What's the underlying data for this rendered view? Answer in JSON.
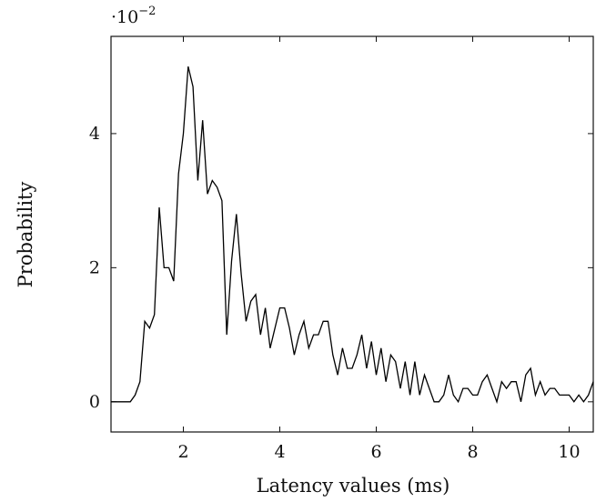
{
  "chart_data": {
    "type": "line",
    "xlabel": "Latency values (ms)",
    "ylabel": "Probability",
    "y_multiplier_base": "·10",
    "y_multiplier_exponent": "−2",
    "xlim": [
      0.5,
      10.5
    ],
    "ylim": [
      -0.0045,
      0.0545
    ],
    "grid": false,
    "x_ticks": [
      2,
      4,
      6,
      8,
      10
    ],
    "x_tick_labels": [
      "2",
      "4",
      "6",
      "8",
      "10"
    ],
    "y_ticks": [
      0,
      0.02,
      0.04
    ],
    "y_tick_labels": [
      "0",
      "2",
      "4"
    ],
    "series": [
      {
        "color": "#000000",
        "x": [
          0.5,
          0.9,
          1.0,
          1.1,
          1.2,
          1.3,
          1.4,
          1.5,
          1.6,
          1.7,
          1.8,
          1.9,
          2.0,
          2.1,
          2.2,
          2.3,
          2.4,
          2.5,
          2.6,
          2.7,
          2.8,
          2.9,
          3.0,
          3.1,
          3.2,
          3.3,
          3.4,
          3.5,
          3.6,
          3.7,
          3.8,
          3.9,
          4.0,
          4.1,
          4.2,
          4.3,
          4.4,
          4.5,
          4.6,
          4.7,
          4.8,
          4.9,
          5.0,
          5.1,
          5.2,
          5.3,
          5.4,
          5.5,
          5.6,
          5.7,
          5.8,
          5.9,
          6.0,
          6.1,
          6.2,
          6.3,
          6.4,
          6.5,
          6.6,
          6.7,
          6.8,
          6.9,
          7.0,
          7.1,
          7.2,
          7.3,
          7.4,
          7.5,
          7.6,
          7.7,
          7.8,
          7.9,
          8.0,
          8.1,
          8.2,
          8.3,
          8.4,
          8.5,
          8.6,
          8.7,
          8.8,
          8.9,
          9.0,
          9.1,
          9.2,
          9.3,
          9.4,
          9.5,
          9.6,
          9.7,
          9.8,
          9.9,
          10.0,
          10.1,
          10.2,
          10.3,
          10.4,
          10.5
        ],
        "values": [
          0.0,
          0.0,
          0.001,
          0.003,
          0.012,
          0.011,
          0.013,
          0.029,
          0.02,
          0.02,
          0.018,
          0.034,
          0.04,
          0.05,
          0.047,
          0.033,
          0.042,
          0.031,
          0.033,
          0.032,
          0.03,
          0.01,
          0.021,
          0.028,
          0.019,
          0.012,
          0.015,
          0.016,
          0.01,
          0.014,
          0.008,
          0.011,
          0.014,
          0.014,
          0.011,
          0.007,
          0.01,
          0.012,
          0.008,
          0.01,
          0.01,
          0.012,
          0.012,
          0.007,
          0.004,
          0.008,
          0.005,
          0.005,
          0.007,
          0.01,
          0.005,
          0.009,
          0.004,
          0.008,
          0.003,
          0.007,
          0.006,
          0.002,
          0.006,
          0.001,
          0.006,
          0.001,
          0.004,
          0.002,
          0.0,
          0.0,
          0.001,
          0.004,
          0.001,
          0.0,
          0.002,
          0.002,
          0.001,
          0.001,
          0.003,
          0.004,
          0.002,
          0.0,
          0.003,
          0.002,
          0.003,
          0.003,
          0.0,
          0.004,
          0.005,
          0.001,
          0.003,
          0.001,
          0.002,
          0.002,
          0.001,
          0.001,
          0.001,
          0.0,
          0.001,
          0.0,
          0.001,
          0.003
        ]
      }
    ]
  }
}
